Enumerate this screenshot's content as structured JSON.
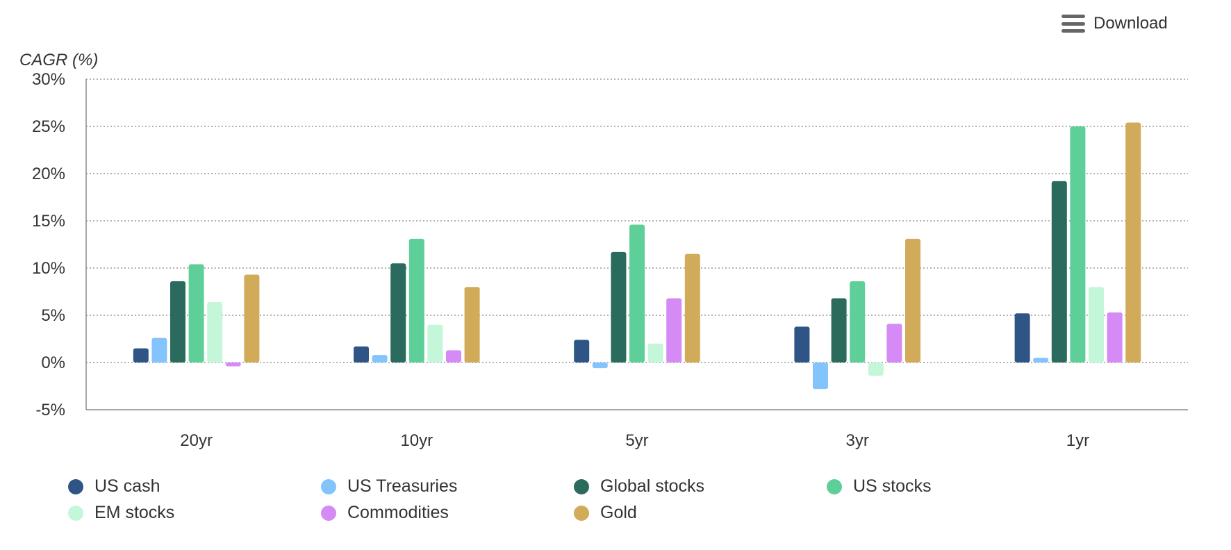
{
  "toolbar": {
    "download_label": "Download",
    "menu_icon": "hamburger-menu-icon"
  },
  "chart_data": {
    "type": "bar",
    "title": "",
    "xlabel": "",
    "ylabel": "CAGR (%)",
    "ylim": [
      -5,
      30
    ],
    "yticks": [
      -5,
      0,
      5,
      10,
      15,
      20,
      25,
      30
    ],
    "ytick_labels": [
      "-5%",
      "0%",
      "5%",
      "10%",
      "15%",
      "20%",
      "25%",
      "30%"
    ],
    "grid": true,
    "legend_position": "bottom",
    "categories": [
      "20yr",
      "10yr",
      "5yr",
      "3yr",
      "1yr"
    ],
    "series": [
      {
        "name": "US cash",
        "color": "#2e5586",
        "values": [
          1.5,
          1.7,
          2.4,
          3.8,
          5.2
        ]
      },
      {
        "name": "US Treasuries",
        "color": "#82c4fb",
        "values": [
          2.6,
          0.8,
          -0.6,
          -2.8,
          0.5
        ]
      },
      {
        "name": "Global stocks",
        "color": "#2a6b5d",
        "values": [
          8.6,
          10.5,
          11.7,
          6.8,
          19.2
        ]
      },
      {
        "name": "US stocks",
        "color": "#5ecf98",
        "values": [
          10.4,
          13.1,
          14.6,
          8.6,
          25.0
        ]
      },
      {
        "name": "EM stocks",
        "color": "#c4f7d9",
        "values": [
          6.4,
          4.0,
          2.0,
          -1.4,
          8.0
        ]
      },
      {
        "name": "Commodities",
        "color": "#d58af5",
        "values": [
          -0.4,
          1.3,
          6.8,
          4.1,
          5.3
        ]
      },
      {
        "name": "Gold",
        "color": "#d1ab5a",
        "values": [
          9.3,
          8.0,
          11.5,
          13.1,
          25.4
        ]
      }
    ]
  }
}
